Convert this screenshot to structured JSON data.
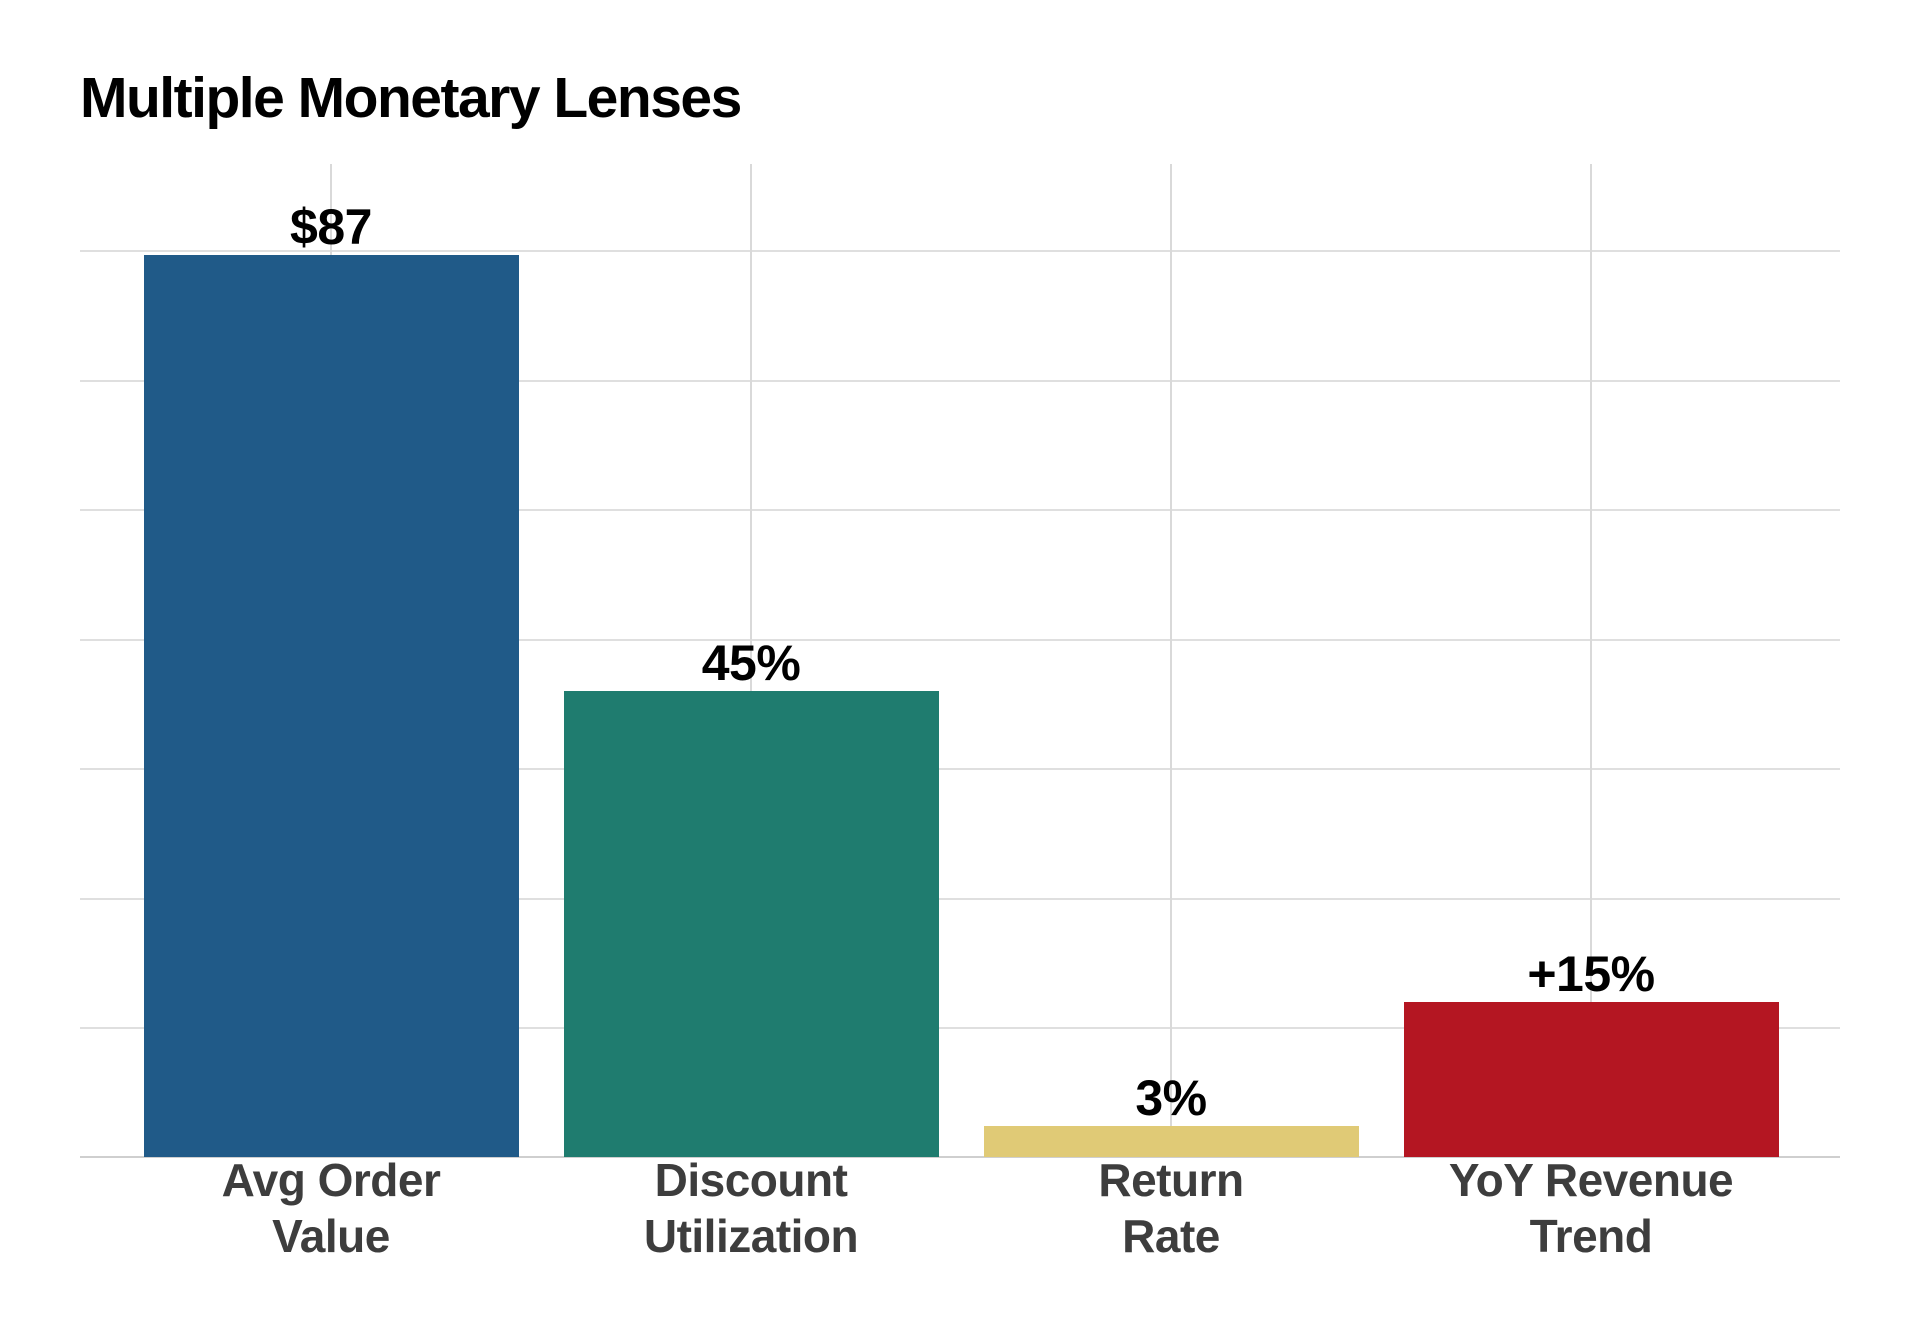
{
  "page": {
    "title": "Multiple Monetary Lenses"
  },
  "colors": {
    "background": "#ffffff",
    "grid_horizontal": "#dfdfdf",
    "grid_vertical": "#d9d9d9",
    "axis_line": "#cfcfcf",
    "title_text": "#000000",
    "value_label_text": "#000000",
    "category_label_text": "#3d3d3d"
  },
  "chart_data": {
    "type": "bar",
    "title": "Multiple Monetary Lenses",
    "categories": [
      "Avg Order Value",
      "Discount Utilization",
      "Return Rate",
      "YoY Revenue Trend"
    ],
    "category_label_lines": [
      [
        "Avg Order",
        "Value"
      ],
      [
        "Discount",
        "Utilization"
      ],
      [
        "Return",
        "Rate"
      ],
      [
        "YoY Revenue",
        "Trend"
      ]
    ],
    "values": [
      87,
      45,
      3,
      15
    ],
    "value_labels": [
      "$87",
      "45%",
      "3%",
      "+15%"
    ],
    "bar_colors": [
      "#205a88",
      "#1f7c6f",
      "#e0ca76",
      "#b41622"
    ],
    "xlabel": "",
    "ylabel": "",
    "ylim": [
      0,
      95.8
    ],
    "gridline_values": [
      12.5,
      25,
      37.5,
      50,
      62.5,
      75,
      87.5
    ],
    "grid": "on",
    "legend": "none",
    "y_tick_labels_visible": false
  }
}
